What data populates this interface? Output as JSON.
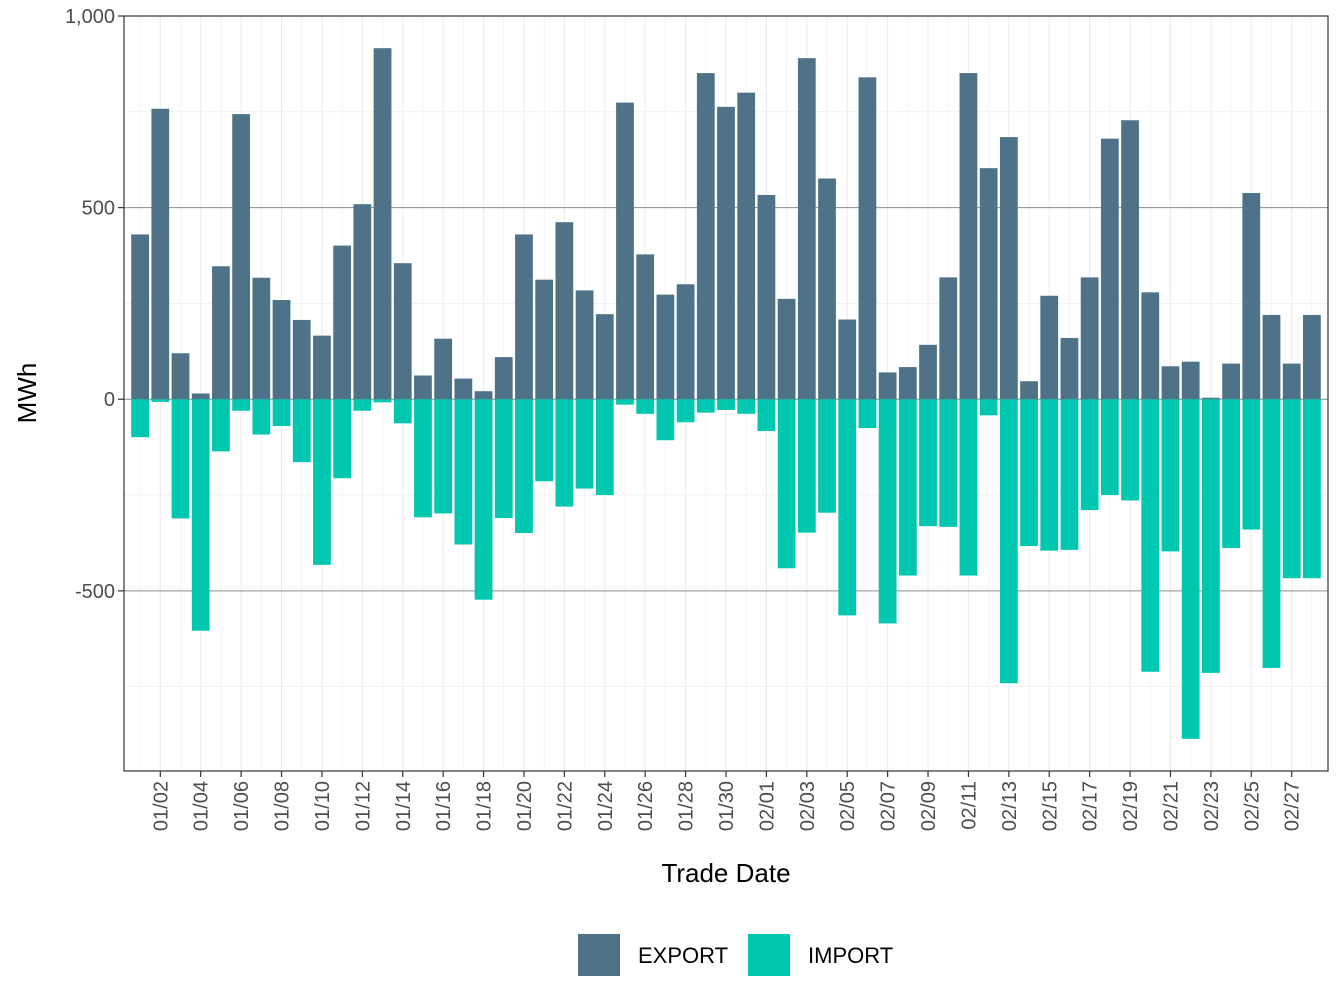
{
  "chart_data": {
    "type": "bar",
    "stacking": "diverging",
    "xlabel": "Trade Date",
    "ylabel": "MWh",
    "ylim": [
      -970,
      1000
    ],
    "y_ticks": [
      -500,
      0,
      500,
      1000
    ],
    "y_tick_labels": [
      "-500",
      "0",
      "500",
      "1,000"
    ],
    "grid": true,
    "legend_position": "bottom",
    "categories": [
      "01/01",
      "01/02",
      "01/03",
      "01/04",
      "01/05",
      "01/06",
      "01/07",
      "01/08",
      "01/09",
      "01/10",
      "01/11",
      "01/12",
      "01/13",
      "01/14",
      "01/15",
      "01/16",
      "01/17",
      "01/18",
      "01/19",
      "01/20",
      "01/21",
      "01/22",
      "01/23",
      "01/24",
      "01/25",
      "01/26",
      "01/27",
      "01/28",
      "01/29",
      "01/30",
      "01/31",
      "02/01",
      "02/02",
      "02/03",
      "02/04",
      "02/05",
      "02/06",
      "02/07",
      "02/08",
      "02/09",
      "02/10",
      "02/11",
      "02/12",
      "02/13",
      "02/14",
      "02/15",
      "02/16",
      "02/17",
      "02/18",
      "02/19",
      "02/20",
      "02/21",
      "02/22",
      "02/23",
      "02/24",
      "02/25",
      "02/26",
      "02/27",
      "02/28"
    ],
    "tick_labels": [
      "01/02",
      "01/04",
      "01/06",
      "01/08",
      "01/10",
      "01/12",
      "01/14",
      "01/16",
      "01/18",
      "01/20",
      "01/22",
      "01/24",
      "01/26",
      "01/28",
      "01/30",
      "02/01",
      "02/03",
      "02/05",
      "02/07",
      "02/09",
      "02/11",
      "02/13",
      "02/15",
      "02/17",
      "02/19",
      "02/21",
      "02/23",
      "02/25",
      "02/27"
    ],
    "series": [
      {
        "name": "EXPORT",
        "color": "#4E7388",
        "values": [
          430,
          758,
          120,
          15,
          347,
          744,
          317,
          259,
          207,
          166,
          401,
          509,
          916,
          355,
          62,
          158,
          54,
          21,
          110,
          430,
          312,
          462,
          284,
          222,
          774,
          378,
          273,
          300,
          851,
          763,
          800,
          533,
          262,
          890,
          576,
          208,
          840,
          70,
          84,
          142,
          318,
          851,
          603,
          684,
          47,
          270,
          160,
          318,
          680,
          728,
          279,
          86,
          98,
          4,
          93,
          538,
          220,
          93,
          220
        ]
      },
      {
        "name": "IMPORT",
        "color": "#00C7B0",
        "values": [
          -99,
          -7,
          -311,
          -604,
          -136,
          -30,
          -92,
          -70,
          -164,
          -432,
          -206,
          -30,
          -8,
          -63,
          -308,
          -298,
          -379,
          -523,
          -310,
          -349,
          -214,
          -280,
          -233,
          -250,
          -14,
          -38,
          -107,
          -60,
          -35,
          -28,
          -38,
          -83,
          -441,
          -348,
          -296,
          -564,
          -75,
          -585,
          -460,
          -331,
          -333,
          -460,
          -42,
          -741,
          -383,
          -395,
          -393,
          -289,
          -250,
          -264,
          -711,
          -397,
          -886,
          -714,
          -388,
          -340,
          -701,
          -467,
          -467
        ]
      }
    ]
  }
}
